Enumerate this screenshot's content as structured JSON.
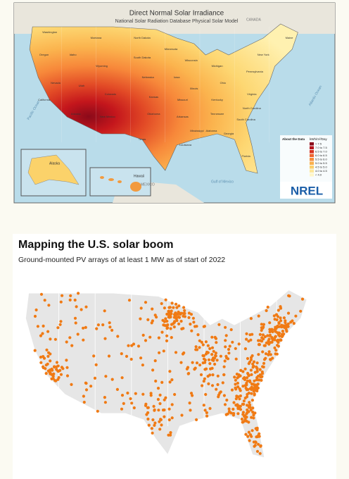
{
  "top_map": {
    "title": "Direct Normal Solar Irradiance",
    "subtitle": "National Solar Radiation Database Physical Solar Model",
    "states": [
      "Washington",
      "Montana",
      "North Dakota",
      "Minnesota",
      "Oregon",
      "Idaho",
      "Wyoming",
      "South Dakota",
      "Wisconsin",
      "Michigan",
      "New York",
      "Maine",
      "Nevada",
      "Utah",
      "Colorado",
      "Nebraska",
      "Iowa",
      "Illinois",
      "Ohio",
      "Pennsylvania",
      "California",
      "Arizona",
      "New Mexico",
      "Kansas",
      "Missouri",
      "Kentucky",
      "Virginia",
      "Oklahoma",
      "Texas",
      "Arkansas",
      "Tennessee",
      "North Carolina",
      "Mississippi",
      "Alabama",
      "Georgia",
      "South Carolina",
      "Louisiana",
      "Florida"
    ],
    "regions": {
      "canada": "CANADA",
      "mexico": "MEXICO",
      "pacific": "Pacific Ocean",
      "atlantic": "Atlantic Ocean",
      "gulf": "Gulf of Mexico",
      "alaska": "Alaska",
      "hawaii": "Hawaii"
    },
    "legend": {
      "about": "About the Data",
      "unit": "kWh/m²/Day",
      "classes": [
        "> 7.5",
        "7.0 to 7.5",
        "6.5 to 7.0",
        "6.0 to 6.5",
        "5.5 to 6.0",
        "5.0 to 5.5",
        "4.5 to 5.0",
        "4.0 to 4.5",
        "< 4.0"
      ],
      "colors": [
        "#8b0a1a",
        "#b5121b",
        "#d7301f",
        "#ef6530",
        "#f88d3c",
        "#fbb04c",
        "#fdcf6a",
        "#fee79a",
        "#fff6c8"
      ]
    },
    "logo": "NREL"
  },
  "bottom_map": {
    "title": "Mapping the U.S. solar boom",
    "subtitle": "Ground-mounted PV arrays of at least 1 MW as of start of 2022",
    "color": "#f07a14"
  }
}
